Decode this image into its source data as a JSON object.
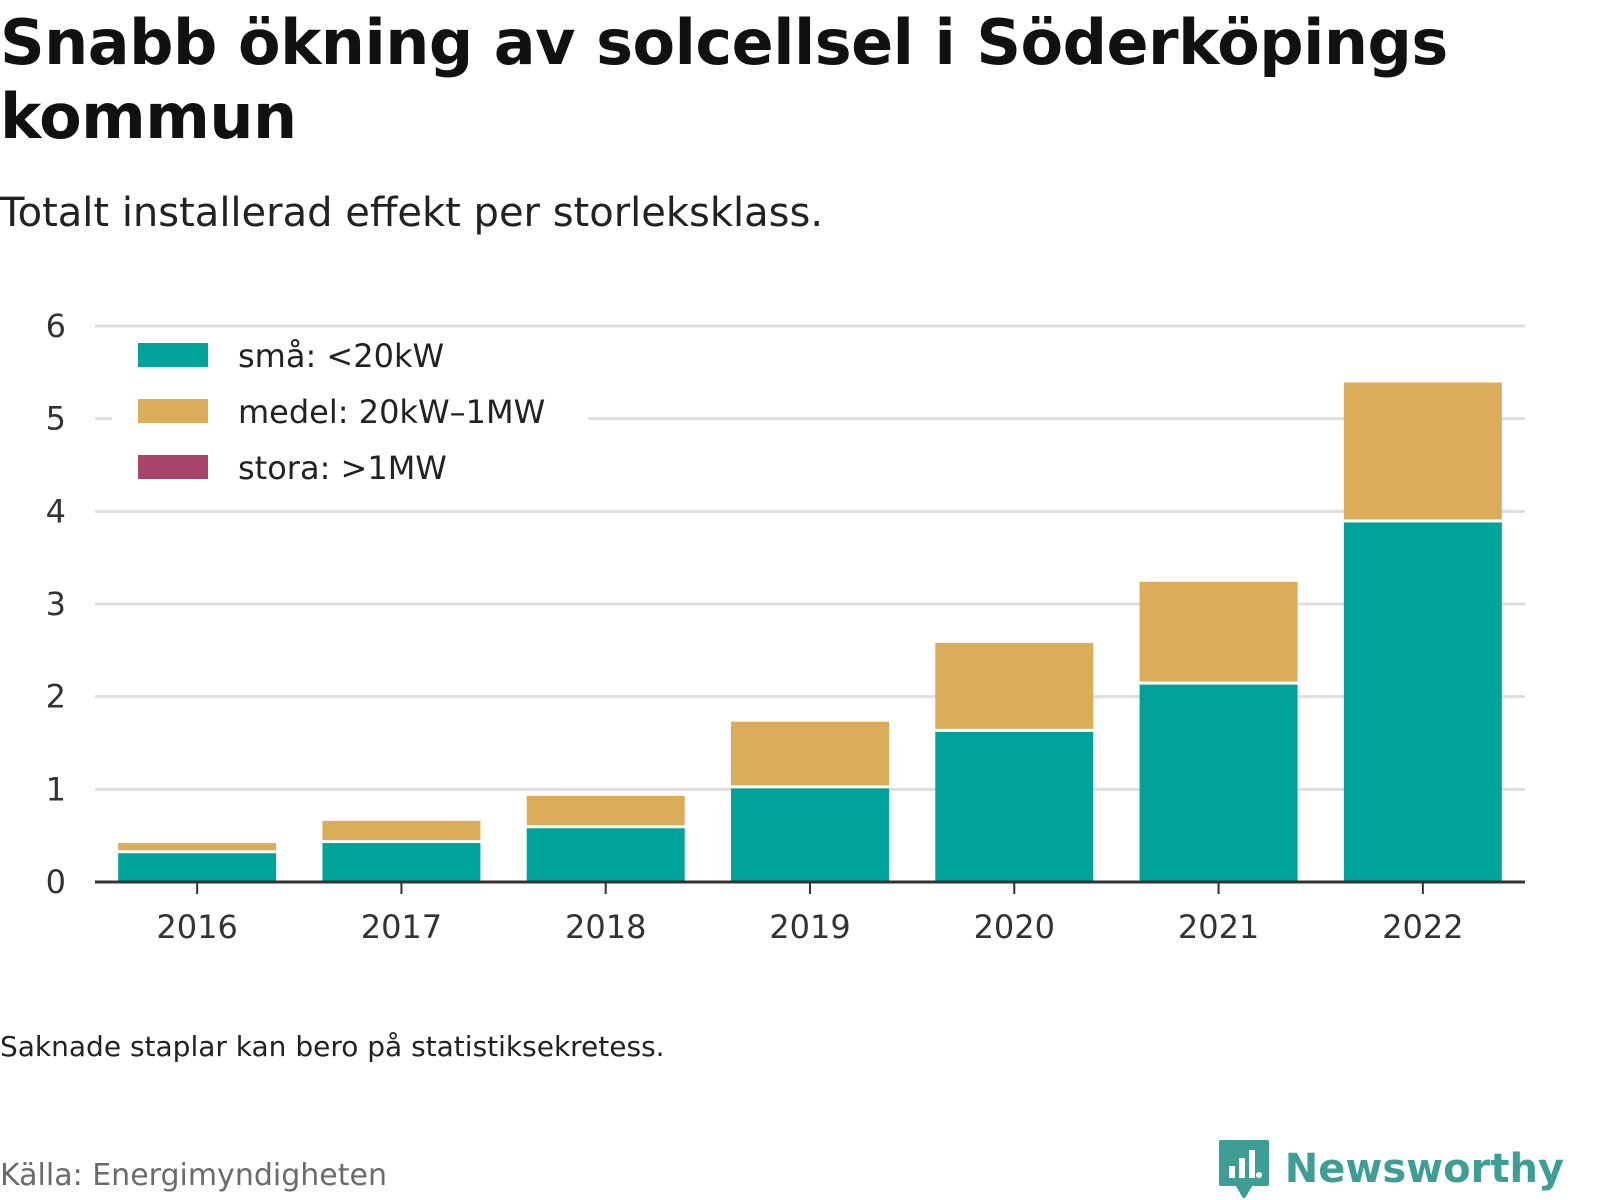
{
  "header": {
    "title": "Snabb ökning av solcellsel i Söderköpings kommun",
    "subtitle": "Totalt installerad effekt per storleksklass."
  },
  "footer": {
    "note": "Saknade staplar kan bero på statistiksekretess.",
    "source": "Källa: Energimyndigheten",
    "brand": "Newsworthy"
  },
  "chart_data": {
    "type": "bar",
    "stacked": true,
    "title": "Snabb ökning av solcellsel i Söderköpings kommun",
    "subtitle": "Totalt installerad effekt per storleksklass.",
    "xlabel": "",
    "ylabel": "",
    "categories": [
      "2016",
      "2017",
      "2018",
      "2019",
      "2020",
      "2021",
      "2022"
    ],
    "ylim": [
      0,
      6
    ],
    "yticks": [
      0,
      1,
      2,
      3,
      4,
      5,
      6
    ],
    "grid": true,
    "legend_position": "top-left",
    "series": [
      {
        "name": "små: <20kW",
        "color": "#00a39a",
        "values": [
          0.31,
          0.42,
          0.58,
          1.01,
          1.62,
          2.13,
          3.88
        ]
      },
      {
        "name": "medel: 20kW–1MW",
        "color": "#dbac5a",
        "values": [
          0.11,
          0.24,
          0.35,
          0.72,
          0.96,
          1.11,
          1.51
        ]
      },
      {
        "name": "stora: >1MW",
        "color": "#a8446a",
        "values": [
          0,
          0,
          0,
          0,
          0,
          0,
          0
        ]
      }
    ]
  }
}
